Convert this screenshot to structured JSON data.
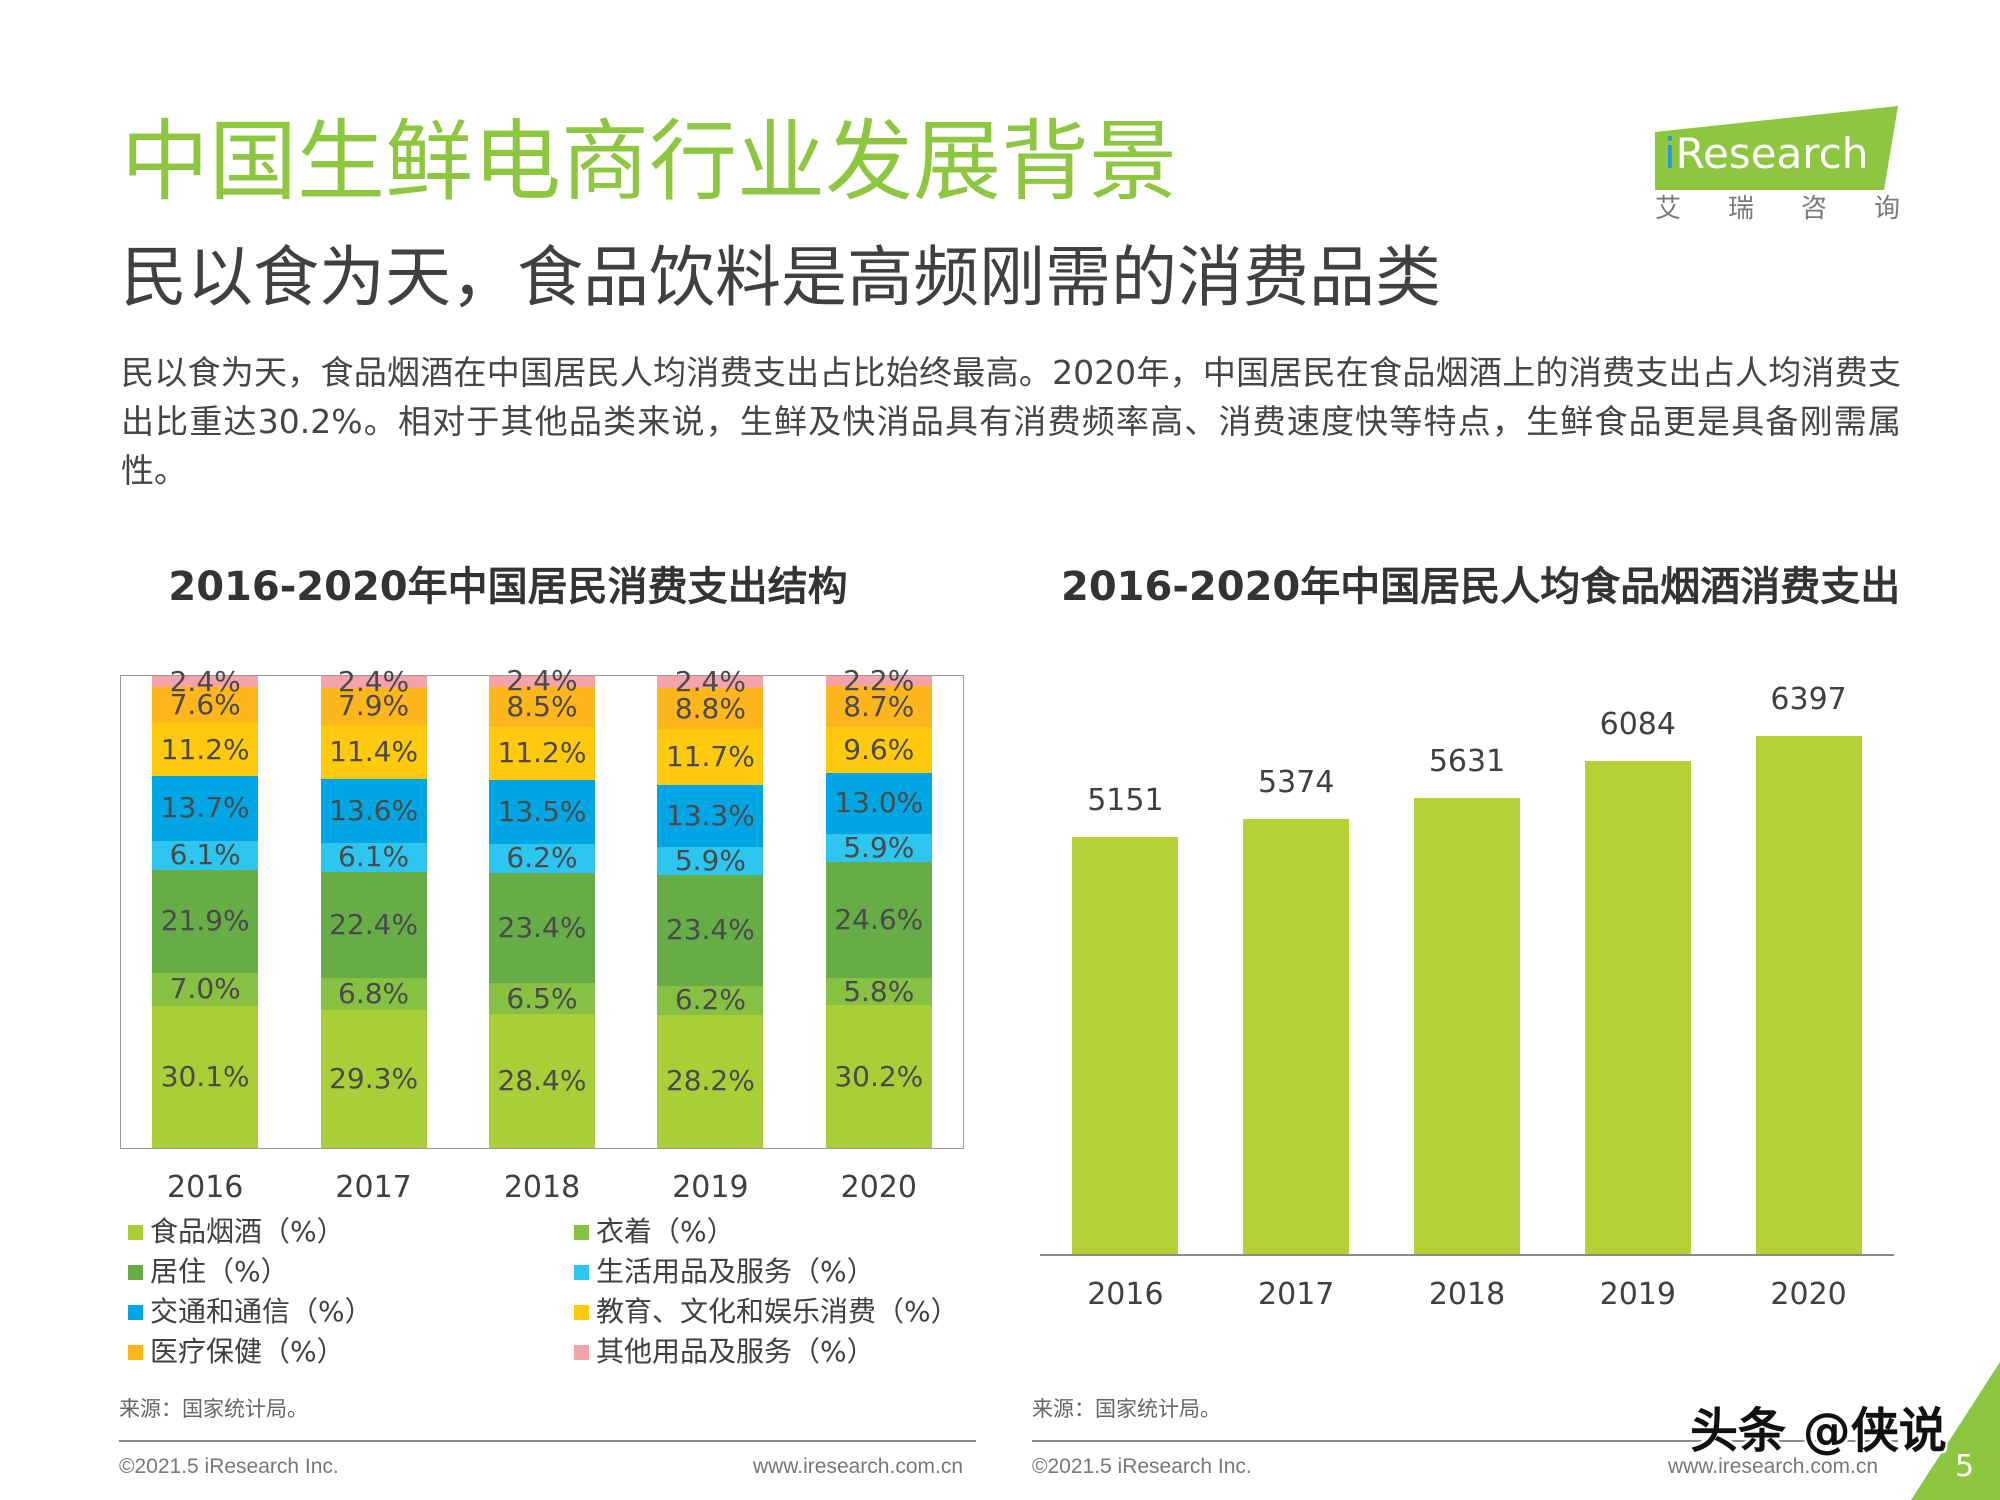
{
  "theme": {
    "title_color": "#8DC63F",
    "corner_colors": [
      "#3FC6E6",
      "#8DC63F"
    ]
  },
  "header": {
    "title": "中国生鲜电商行业发展背景",
    "subtitle": "民以食为天，食品饮料是高频刚需的消费品类",
    "paragraph": "民以食为天，食品烟酒在中国居民人均消费支出占比始终最高。2020年，中国居民在食品烟酒上的消费支出占人均消费支出比重达30.2%。相对于其他品类来说，生鲜及快消品具有消费频率高、消费速度快等特点，生鲜食品更是具备刚需属性。"
  },
  "logo": {
    "wordmark": "iResearch",
    "tagline": "艾瑞咨询",
    "banner_color": "#8DC63F"
  },
  "chart_data": [
    {
      "type": "bar",
      "stacked": true,
      "title": "2016-2020年中国居民消费支出结构",
      "categories": [
        "2016",
        "2017",
        "2018",
        "2019",
        "2020"
      ],
      "unit": "%",
      "ylim": [
        0,
        100
      ],
      "grid": false,
      "legend": "bottom",
      "series": [
        {
          "name": "食品烟酒（%）",
          "color": "#A9CF38",
          "values": [
            30.1,
            29.3,
            28.4,
            28.2,
            30.2
          ]
        },
        {
          "name": "衣着（%）",
          "color": "#86C143",
          "values": [
            7.0,
            6.8,
            6.5,
            6.2,
            5.8
          ]
        },
        {
          "name": "居住（%）",
          "color": "#66AD47",
          "values": [
            21.9,
            22.4,
            23.4,
            23.4,
            24.6
          ]
        },
        {
          "name": "生活用品及服务（%）",
          "color": "#2EC5F0",
          "values": [
            6.1,
            6.1,
            6.2,
            5.9,
            5.9
          ]
        },
        {
          "name": "交通和通信（%）",
          "color": "#00A6E3",
          "values": [
            13.7,
            13.6,
            13.5,
            13.3,
            13.0
          ]
        },
        {
          "name": "教育、文化和娱乐消费（%）",
          "color": "#FFC90E",
          "values": [
            11.2,
            11.4,
            11.2,
            11.7,
            9.6
          ]
        },
        {
          "name": "医疗保健（%）",
          "color": "#FFB51C",
          "values": [
            7.6,
            7.9,
            8.5,
            8.8,
            8.7
          ]
        },
        {
          "name": "其他用品及服务（%）",
          "color": "#F4A3AA",
          "values": [
            2.4,
            2.4,
            2.4,
            2.4,
            2.2
          ]
        }
      ]
    },
    {
      "type": "bar",
      "title": "2016-2020年中国居民人均食品烟酒消费支出",
      "categories": [
        "2016",
        "2017",
        "2018",
        "2019",
        "2020"
      ],
      "values": [
        5151,
        5374,
        5631,
        6084,
        6397
      ],
      "color": "#B2D235",
      "ylim": [
        0,
        7000
      ],
      "grid": false,
      "legend": "none"
    }
  ],
  "left_footer": {
    "source": "来源：国家统计局。",
    "copyright": "©2021.5 iResearch Inc.",
    "website": "www.iresearch.com.cn"
  },
  "right_footer": {
    "source": "来源：国家统计局。",
    "copyright": "©2021.5 iResearch Inc.",
    "website": "www.iresearch.com.cn"
  },
  "watermark": "头条 @侠说",
  "page_number": "5"
}
